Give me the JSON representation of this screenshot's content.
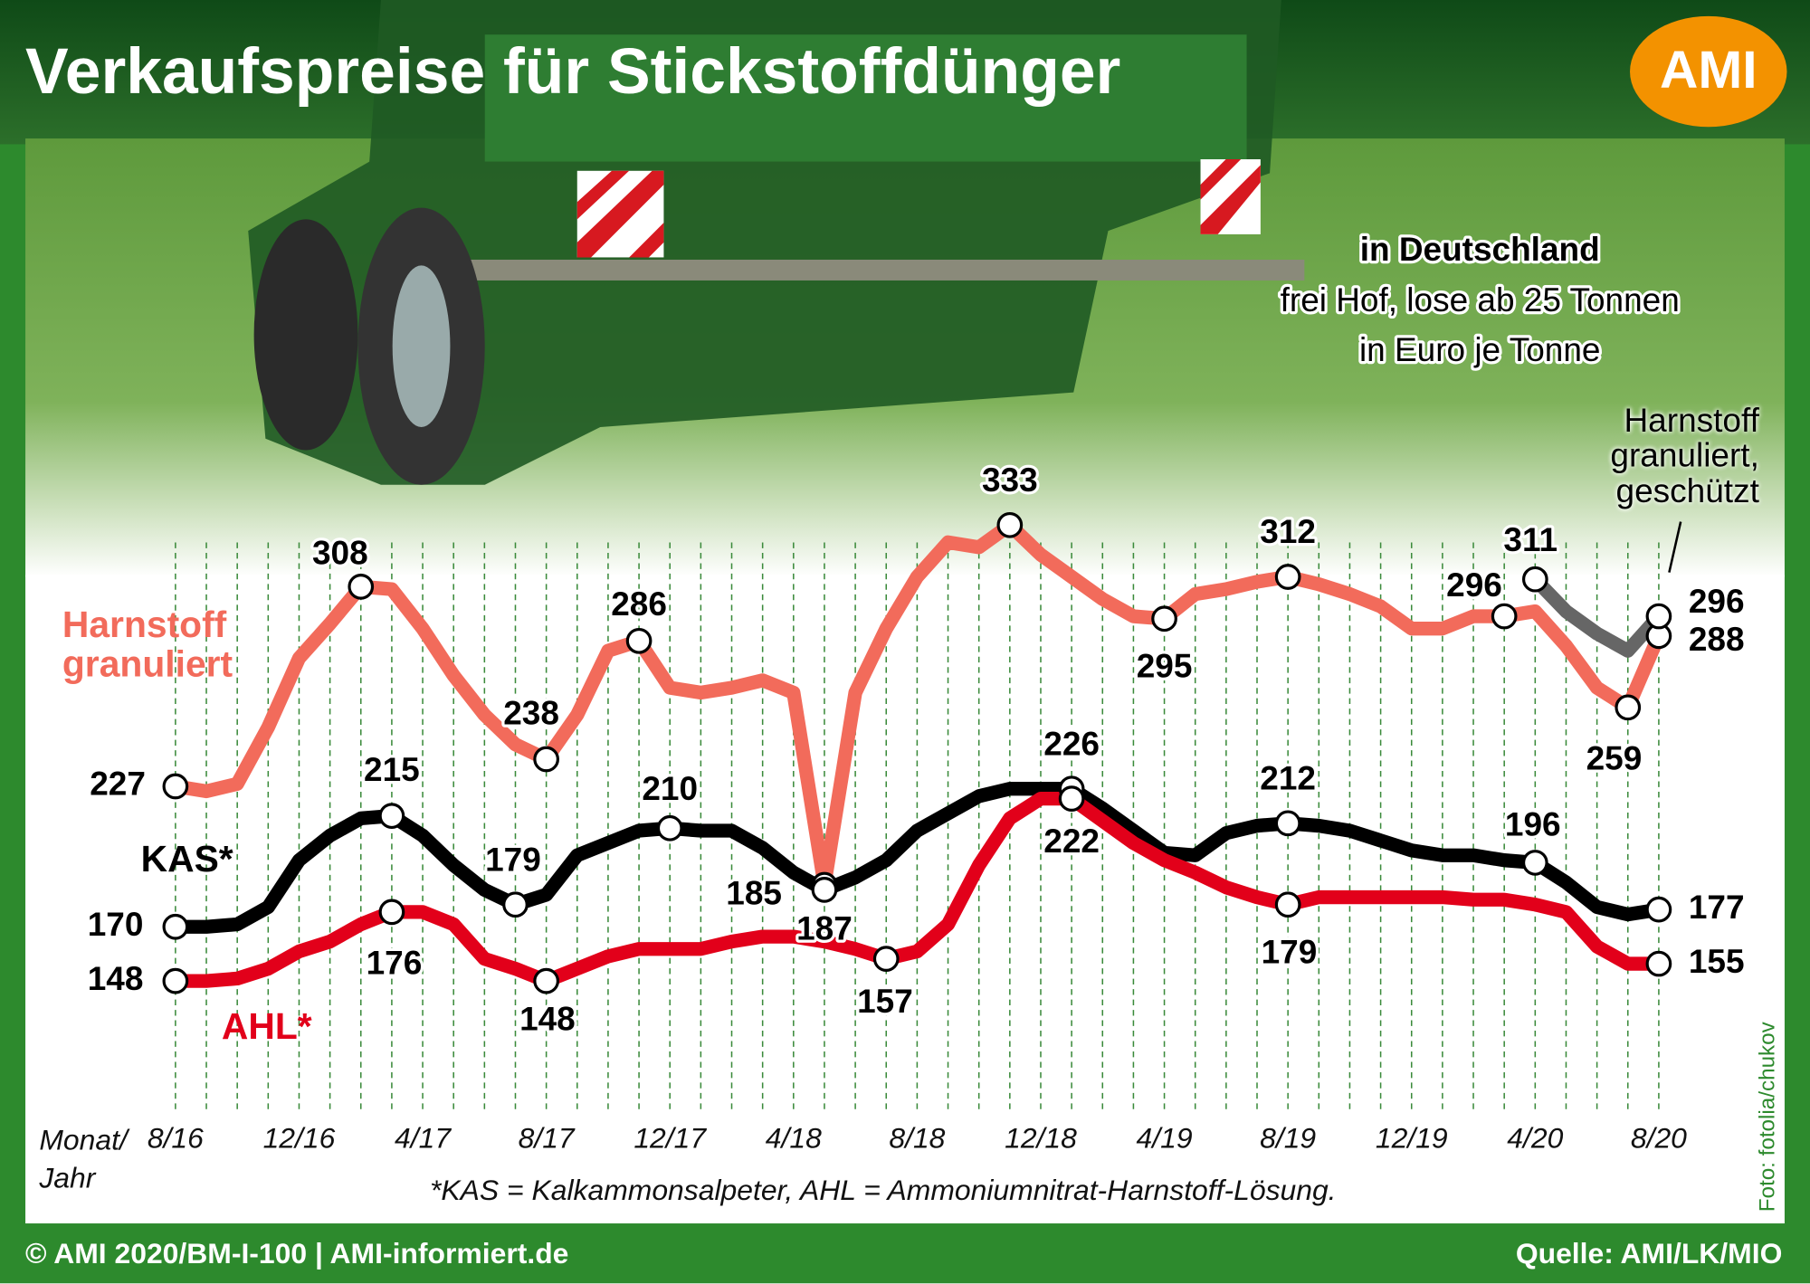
{
  "chart_data": {
    "type": "line",
    "title": "Verkaufspreise für Stickstoffdünger",
    "logo": "AMI",
    "subtitle": [
      "in Deutschland",
      "frei Hof, lose ab 25 Tonnen",
      "in Euro je Tonne"
    ],
    "xlabel": "Monat/ Jahr",
    "footnote": "*KAS = Kalkammonsalpeter, AHL = Ammoniumnitrat-Harnstoff-Lösung.",
    "copyright": "© AMI 2020/BM-I-100 | AMI-informiert.de",
    "source": "Quelle: AMI/LK/MIO",
    "photo_credit": "Foto: fotolia/chukov",
    "categories": [
      "8/16",
      null,
      null,
      null,
      "12/16",
      null,
      null,
      null,
      "4/17",
      null,
      null,
      null,
      "8/17",
      null,
      null,
      null,
      "12/17",
      null,
      null,
      null,
      "4/18",
      null,
      null,
      null,
      "8/18",
      null,
      null,
      null,
      "12/18",
      null,
      null,
      null,
      "4/19",
      null,
      null,
      null,
      "8/19",
      null,
      null,
      null,
      "12/19",
      null,
      null,
      null,
      "4/20",
      null,
      null,
      null,
      "8/20"
    ],
    "ylim": [
      96,
      340
    ],
    "grid": true,
    "series": [
      {
        "name": "Harnstoff granuliert",
        "color": "#f26b5b",
        "values": [
          227,
          225,
          228,
          251,
          279,
          293,
          308,
          307,
          291,
          272,
          256,
          244,
          238,
          256,
          282,
          286,
          267,
          265,
          267,
          270,
          265,
          187,
          265,
          291,
          312,
          326,
          324,
          333,
          321,
          312,
          303,
          296,
          295,
          305,
          307,
          310,
          312,
          309,
          305,
          300,
          291,
          291,
          296,
          296,
          298,
          284,
          267,
          259,
          288
        ],
        "markers": [
          0,
          6,
          12,
          15,
          21,
          27,
          32,
          36,
          43,
          47,
          48
        ]
      },
      {
        "name": "Harnstoff granuliert, geschützt",
        "color": "#666666",
        "values": [
          null,
          null,
          null,
          null,
          null,
          null,
          null,
          null,
          null,
          null,
          null,
          null,
          null,
          null,
          null,
          null,
          null,
          null,
          null,
          null,
          null,
          null,
          null,
          null,
          null,
          null,
          null,
          null,
          null,
          null,
          null,
          null,
          null,
          null,
          null,
          null,
          null,
          null,
          null,
          null,
          null,
          null,
          null,
          null,
          311,
          298,
          289,
          282,
          296
        ],
        "markers": [
          44,
          48
        ]
      },
      {
        "name": "KAS*",
        "color": "#000000",
        "values": [
          170,
          170,
          171,
          178,
          197,
          207,
          214,
          215,
          207,
          195,
          185,
          179,
          183,
          199,
          204,
          209,
          210,
          209,
          209,
          202,
          192,
          185,
          190,
          197,
          209,
          216,
          223,
          226,
          226,
          226,
          218,
          209,
          200,
          199,
          208,
          211,
          212,
          211,
          209,
          205,
          201,
          199,
          199,
          197,
          196,
          188,
          178,
          175,
          177
        ],
        "markers": [
          0,
          7,
          11,
          16,
          21,
          29,
          36,
          44,
          48
        ]
      },
      {
        "name": "AHL*",
        "color": "#e2001a",
        "values": [
          148,
          148,
          149,
          153,
          160,
          164,
          171,
          176,
          176,
          171,
          157,
          153,
          148,
          153,
          158,
          161,
          161,
          161,
          164,
          166,
          166,
          164,
          161,
          157,
          160,
          171,
          195,
          214,
          222,
          222,
          213,
          204,
          197,
          192,
          186,
          182,
          179,
          182,
          182,
          182,
          182,
          182,
          181,
          181,
          179,
          176,
          162,
          155,
          155
        ],
        "markers": [
          0,
          7,
          12,
          23,
          29,
          36,
          48
        ]
      }
    ]
  }
}
